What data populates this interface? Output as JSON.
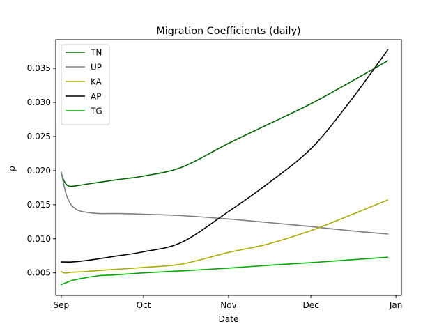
{
  "chart_data": {
    "type": "line",
    "title": "Migration Coefficients (daily)",
    "xlabel": "Date",
    "ylabel": "ρ",
    "x_domain": [
      "2020-08-30",
      "2021-01-03"
    ],
    "ylim": [
      0.0017,
      0.0392
    ],
    "x_ticks": [
      {
        "date": "2020-09-01",
        "label": "Sep"
      },
      {
        "date": "2020-10-01",
        "label": "Oct"
      },
      {
        "date": "2020-11-01",
        "label": "Nov"
      },
      {
        "date": "2020-12-01",
        "label": "Dec"
      },
      {
        "date": "2021-01-01",
        "label": "Jan"
      }
    ],
    "y_ticks": [
      0.005,
      0.01,
      0.015,
      0.02,
      0.025,
      0.03,
      0.035
    ],
    "y_tick_labels": [
      "0.005",
      "0.010",
      "0.015",
      "0.020",
      "0.025",
      "0.030",
      "0.035"
    ],
    "grid": false,
    "legend_position": "top-left",
    "series": [
      {
        "name": "TN",
        "color": "#006400",
        "x": [
          "2020-09-01",
          "2020-09-02",
          "2020-09-03",
          "2020-09-04",
          "2020-09-05",
          "2020-09-07",
          "2020-09-10",
          "2020-09-15",
          "2020-09-22",
          "2020-10-01",
          "2020-10-15",
          "2020-11-01",
          "2020-11-15",
          "2020-12-01",
          "2020-12-15",
          "2020-12-29"
        ],
        "values": [
          0.0196,
          0.0185,
          0.0179,
          0.0177,
          0.0177,
          0.0178,
          0.018,
          0.0183,
          0.0187,
          0.0192,
          0.0205,
          0.024,
          0.0267,
          0.0298,
          0.0329,
          0.0361
        ]
      },
      {
        "name": "UP",
        "color": "#808080",
        "x": [
          "2020-09-01",
          "2020-09-02",
          "2020-09-03",
          "2020-09-04",
          "2020-09-05",
          "2020-09-07",
          "2020-09-10",
          "2020-09-15",
          "2020-09-22",
          "2020-10-01",
          "2020-10-15",
          "2020-11-01",
          "2020-11-15",
          "2020-12-01",
          "2020-12-15",
          "2020-12-29"
        ],
        "values": [
          0.0198,
          0.0178,
          0.0163,
          0.0154,
          0.0148,
          0.0142,
          0.0139,
          0.0137,
          0.0137,
          0.0136,
          0.0134,
          0.0129,
          0.0124,
          0.0118,
          0.0112,
          0.0107
        ]
      },
      {
        "name": "KA",
        "color": "#aaaa00",
        "x": [
          "2020-09-01",
          "2020-09-02",
          "2020-09-03",
          "2020-09-05",
          "2020-09-10",
          "2020-09-20",
          "2020-10-01",
          "2020-10-15",
          "2020-11-01",
          "2020-11-15",
          "2020-12-01",
          "2020-12-15",
          "2020-12-29"
        ],
        "values": [
          0.0052,
          0.005,
          0.005,
          0.0051,
          0.0052,
          0.0055,
          0.0058,
          0.0063,
          0.008,
          0.0092,
          0.0112,
          0.0134,
          0.0157
        ]
      },
      {
        "name": "AP",
        "color": "#000000",
        "x": [
          "2020-09-01",
          "2020-09-05",
          "2020-09-10",
          "2020-09-20",
          "2020-10-01",
          "2020-10-15",
          "2020-11-01",
          "2020-11-15",
          "2020-12-01",
          "2020-12-15",
          "2020-12-29"
        ],
        "values": [
          0.0066,
          0.0066,
          0.0068,
          0.0074,
          0.0081,
          0.0095,
          0.014,
          0.018,
          0.0232,
          0.03,
          0.0377
        ]
      },
      {
        "name": "TG",
        "color": "#00aa00",
        "x": [
          "2020-09-01",
          "2020-09-03",
          "2020-09-05",
          "2020-09-10",
          "2020-09-15",
          "2020-09-20",
          "2020-10-01",
          "2020-10-15",
          "2020-11-01",
          "2020-11-15",
          "2020-12-01",
          "2020-12-15",
          "2020-12-29"
        ],
        "values": [
          0.0033,
          0.0036,
          0.0039,
          0.0043,
          0.0046,
          0.0047,
          0.005,
          0.0053,
          0.0057,
          0.0061,
          0.0065,
          0.0069,
          0.0073
        ]
      }
    ]
  }
}
